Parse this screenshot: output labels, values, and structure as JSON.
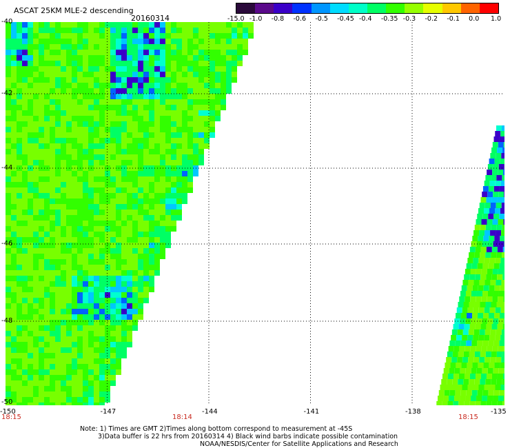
{
  "header": {
    "title": "ASCAT 25KM MLE-2 descending",
    "date": "20160314"
  },
  "colorbar": {
    "labels": [
      "-15.0",
      "-1.0",
      "-0.8",
      "-0.6",
      "-0.5",
      "-0.45",
      "-0.4",
      "-0.35",
      "-0.3",
      "-0.2",
      "-0.1",
      "0.0",
      "1.0"
    ],
    "colors": [
      "#2a0a3a",
      "#5a0a8a",
      "#3a00c8",
      "#0032ff",
      "#0096ff",
      "#00dcff",
      "#00ffc8",
      "#00ff64",
      "#32ff00",
      "#96ff00",
      "#e6ff00",
      "#ffc800",
      "#ff6400",
      "#ff0000"
    ]
  },
  "axes": {
    "lat_labels": [
      "-40",
      "-42",
      "-44",
      "-46",
      "-48",
      "-50"
    ],
    "lon_labels": [
      "-150",
      "-147",
      "-144",
      "-141",
      "-138",
      "-135"
    ],
    "time_labels": [
      "18:15",
      "18:14",
      "18:15"
    ]
  },
  "notes": {
    "line1": "Note: 1) Times are GMT 2)Times along bottom correspond to measurement at -45S",
    "line2": "3)Data buffer is 22 hrs from 20160314 4) Black wind barbs indicate possible contamination",
    "line3": "NOAA/NESDIS/Center for Satellite Applications and Research"
  }
}
